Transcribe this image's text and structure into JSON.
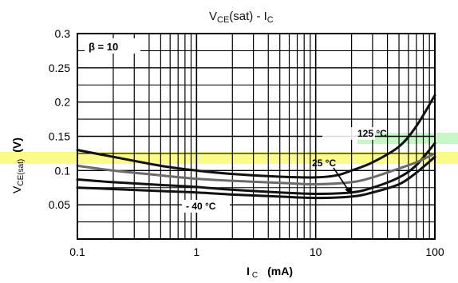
{
  "chart_data": {
    "type": "line",
    "title": {
      "main": "V",
      "sub": "CE",
      "rest": "(sat)  -  I",
      "sub2": "C"
    },
    "xlabel": {
      "main": "I",
      "sub": "C",
      "unit": "(mA)"
    },
    "ylabel": {
      "main": "V",
      "sub": "CE(sat)",
      "unit": "(V)"
    },
    "x_scale": "log",
    "xlim": [
      0.1,
      100
    ],
    "ylim": [
      0,
      0.3
    ],
    "x_ticks": [
      0.1,
      1,
      10,
      100
    ],
    "x_tick_labels": [
      "0.1",
      "1",
      "10",
      "100"
    ],
    "y_ticks": [
      0.05,
      0.1,
      0.15,
      0.2,
      0.25,
      0.3
    ],
    "y_tick_labels": [
      "0.05",
      "0.1",
      "0.15",
      "0.2",
      "0.25",
      "0.3"
    ],
    "grid": true,
    "annotation_beta": "β  = 10",
    "series": [
      {
        "name": "125 °C",
        "color": "#111111",
        "points": [
          [
            0.1,
            0.13
          ],
          [
            0.2,
            0.12
          ],
          [
            0.5,
            0.107
          ],
          [
            1,
            0.1
          ],
          [
            2,
            0.095
          ],
          [
            5,
            0.091
          ],
          [
            10,
            0.09
          ],
          [
            15,
            0.093
          ],
          [
            20,
            0.1
          ],
          [
            30,
            0.112
          ],
          [
            50,
            0.135
          ],
          [
            70,
            0.165
          ],
          [
            100,
            0.21
          ]
        ]
      },
      {
        "name": "25 °C",
        "color": "#111111",
        "points": [
          [
            0.1,
            0.087
          ],
          [
            0.2,
            0.083
          ],
          [
            0.5,
            0.079
          ],
          [
            1,
            0.076
          ],
          [
            2,
            0.072
          ],
          [
            5,
            0.068
          ],
          [
            10,
            0.066
          ],
          [
            20,
            0.068
          ],
          [
            30,
            0.075
          ],
          [
            50,
            0.09
          ],
          [
            70,
            0.108
          ],
          [
            100,
            0.14
          ]
        ]
      },
      {
        "name": "- 40 °C",
        "color": "#111111",
        "points": [
          [
            0.1,
            0.075
          ],
          [
            0.2,
            0.073
          ],
          [
            0.5,
            0.07
          ],
          [
            1,
            0.068
          ],
          [
            2,
            0.065
          ],
          [
            5,
            0.062
          ],
          [
            10,
            0.06
          ],
          [
            20,
            0.062
          ],
          [
            30,
            0.068
          ],
          [
            50,
            0.08
          ],
          [
            70,
            0.097
          ],
          [
            100,
            0.12
          ]
        ]
      },
      {
        "name": "",
        "color": "#6b6b6b",
        "points": [
          [
            0.1,
            0.107
          ],
          [
            0.2,
            0.1
          ],
          [
            0.5,
            0.093
          ],
          [
            1,
            0.088
          ],
          [
            2,
            0.085
          ],
          [
            5,
            0.082
          ],
          [
            10,
            0.08
          ],
          [
            20,
            0.083
          ],
          [
            30,
            0.09
          ],
          [
            50,
            0.103
          ],
          [
            70,
            0.112
          ],
          [
            100,
            0.125
          ]
        ]
      }
    ],
    "highlights": {
      "yellow": "#fbfb8a",
      "green": "#c6f7c6"
    }
  }
}
